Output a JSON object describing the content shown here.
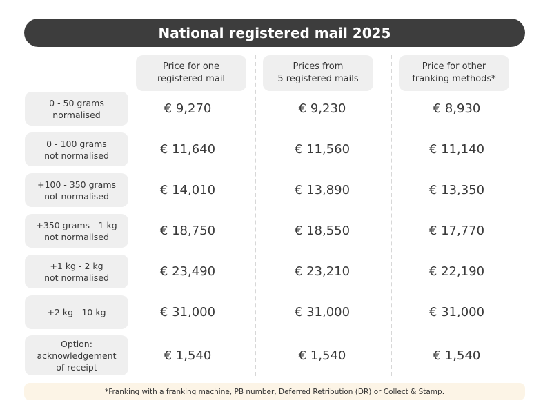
{
  "title": "National registered mail 2025",
  "columns": [
    "Price for one\nregistered mail",
    "Prices from\n5 registered mails",
    "Price for other\nfranking methods*"
  ],
  "rows": [
    {
      "label": "0 - 50 grams\nnormalised",
      "values": [
        "€ 9,270",
        "€ 9,230",
        "€ 8,930"
      ]
    },
    {
      "label": "0 - 100 grams\nnot normalised",
      "values": [
        "€ 11,640",
        "€ 11,560",
        "€ 11,140"
      ]
    },
    {
      "label": "+100 - 350 grams\nnot normalised",
      "values": [
        "€ 14,010",
        "€ 13,890",
        "€ 13,350"
      ]
    },
    {
      "label": "+350 grams - 1 kg\nnot normalised",
      "values": [
        "€ 18,750",
        "€ 18,550",
        "€ 17,770"
      ]
    },
    {
      "label": "+1 kg - 2 kg\nnot normalised",
      "values": [
        "€ 23,490",
        "€ 23,210",
        "€ 22,190"
      ]
    },
    {
      "label": "+2 kg - 10 kg",
      "values": [
        "€ 31,000",
        "€ 31,000",
        "€ 31,000"
      ]
    },
    {
      "label": "Option:\nacknowledgement\nof receipt",
      "values": [
        "€ 1,540",
        "€ 1,540",
        "€ 1,540"
      ]
    }
  ],
  "footnote": "*Franking with a franking machine, PB number, Deferred Retribution (DR) or Collect & Stamp.",
  "colors": {
    "title_bg": "#3d3d3d",
    "cell_bg": "#efefef",
    "footnote_bg": "#fcf4e6",
    "text": "#3a3a3a"
  }
}
